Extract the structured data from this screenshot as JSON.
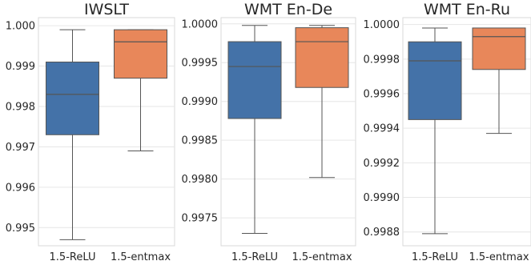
{
  "figure": {
    "panels": [
      "IWSLT",
      "WMT En-De",
      "WMT En-Ru"
    ]
  },
  "chart_data": [
    {
      "type": "box",
      "title": "IWSLT",
      "categories": [
        "1.5-ReLU",
        "1.5-entmax"
      ],
      "ylim": [
        0.99455,
        1.0002
      ],
      "yticks": [
        "0.995",
        "0.996",
        "0.997",
        "0.998",
        "0.999",
        "1.000"
      ],
      "ytick_values": [
        0.995,
        0.996,
        0.997,
        0.998,
        0.999,
        1.0
      ],
      "grid": true,
      "colors": [
        "#4472a8",
        "#e8875a"
      ],
      "boxes": [
        {
          "min": 0.9947,
          "q1": 0.9973,
          "median": 0.9983,
          "q3": 0.9991,
          "max": 0.9999
        },
        {
          "min": 0.9969,
          "q1": 0.9987,
          "median": 0.9996,
          "q3": 0.9999,
          "max": 0.9999
        }
      ]
    },
    {
      "type": "box",
      "title": "WMT En-De",
      "categories": [
        "1.5-ReLU",
        "1.5-entmax"
      ],
      "ylim": [
        0.99714,
        1.00008
      ],
      "yticks": [
        "0.9975",
        "0.9980",
        "0.9985",
        "0.9990",
        "0.9995",
        "1.0000"
      ],
      "ytick_values": [
        0.9975,
        0.998,
        0.9985,
        0.999,
        0.9995,
        1.0
      ],
      "grid": true,
      "colors": [
        "#4472a8",
        "#e8875a"
      ],
      "boxes": [
        {
          "min": 0.9973,
          "q1": 0.99878,
          "median": 0.99945,
          "q3": 0.99977,
          "max": 0.99998
        },
        {
          "min": 0.99802,
          "q1": 0.99918,
          "median": 0.99977,
          "q3": 0.99995,
          "max": 0.99998
        }
      ]
    },
    {
      "type": "box",
      "title": "WMT En-Ru",
      "categories": [
        "1.5-ReLU",
        "1.5-entmax"
      ],
      "ylim": [
        0.99872,
        1.00004
      ],
      "yticks": [
        "0.9988",
        "0.9990",
        "0.9992",
        "0.9994",
        "0.9996",
        "0.9998",
        "1.0000"
      ],
      "ytick_values": [
        0.9988,
        0.999,
        0.9992,
        0.9994,
        0.9996,
        0.9998,
        1.0
      ],
      "grid": true,
      "colors": [
        "#4472a8",
        "#e8875a"
      ],
      "boxes": [
        {
          "min": 0.99879,
          "q1": 0.99945,
          "median": 0.99979,
          "q3": 0.9999,
          "max": 0.99998
        },
        {
          "min": 0.99937,
          "q1": 0.99974,
          "median": 0.99993,
          "q3": 0.99998,
          "max": 0.99998
        }
      ]
    }
  ]
}
